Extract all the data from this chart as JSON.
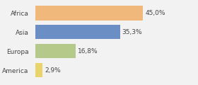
{
  "categories": [
    "Africa",
    "Asia",
    "Europa",
    "America"
  ],
  "values": [
    45.0,
    35.3,
    16.8,
    2.9
  ],
  "labels": [
    "45,0%",
    "35,3%",
    "16,8%",
    "2,9%"
  ],
  "bar_colors": [
    "#f0b87a",
    "#6b8ec4",
    "#b5c98a",
    "#e8d46a"
  ],
  "background_color": "#f2f2f2",
  "xlim": [
    0,
    58
  ]
}
